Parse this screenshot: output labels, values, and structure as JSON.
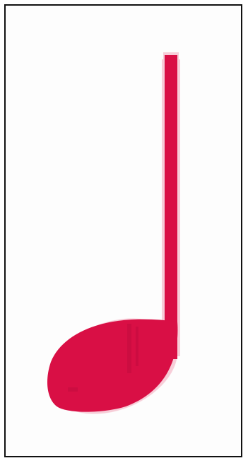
{
  "image": {
    "subject": "quarter-note",
    "colors": {
      "note": "#d90f45",
      "note_edge": "#f3a7bb",
      "border": "#111111",
      "background": "#fdfdfd"
    }
  }
}
